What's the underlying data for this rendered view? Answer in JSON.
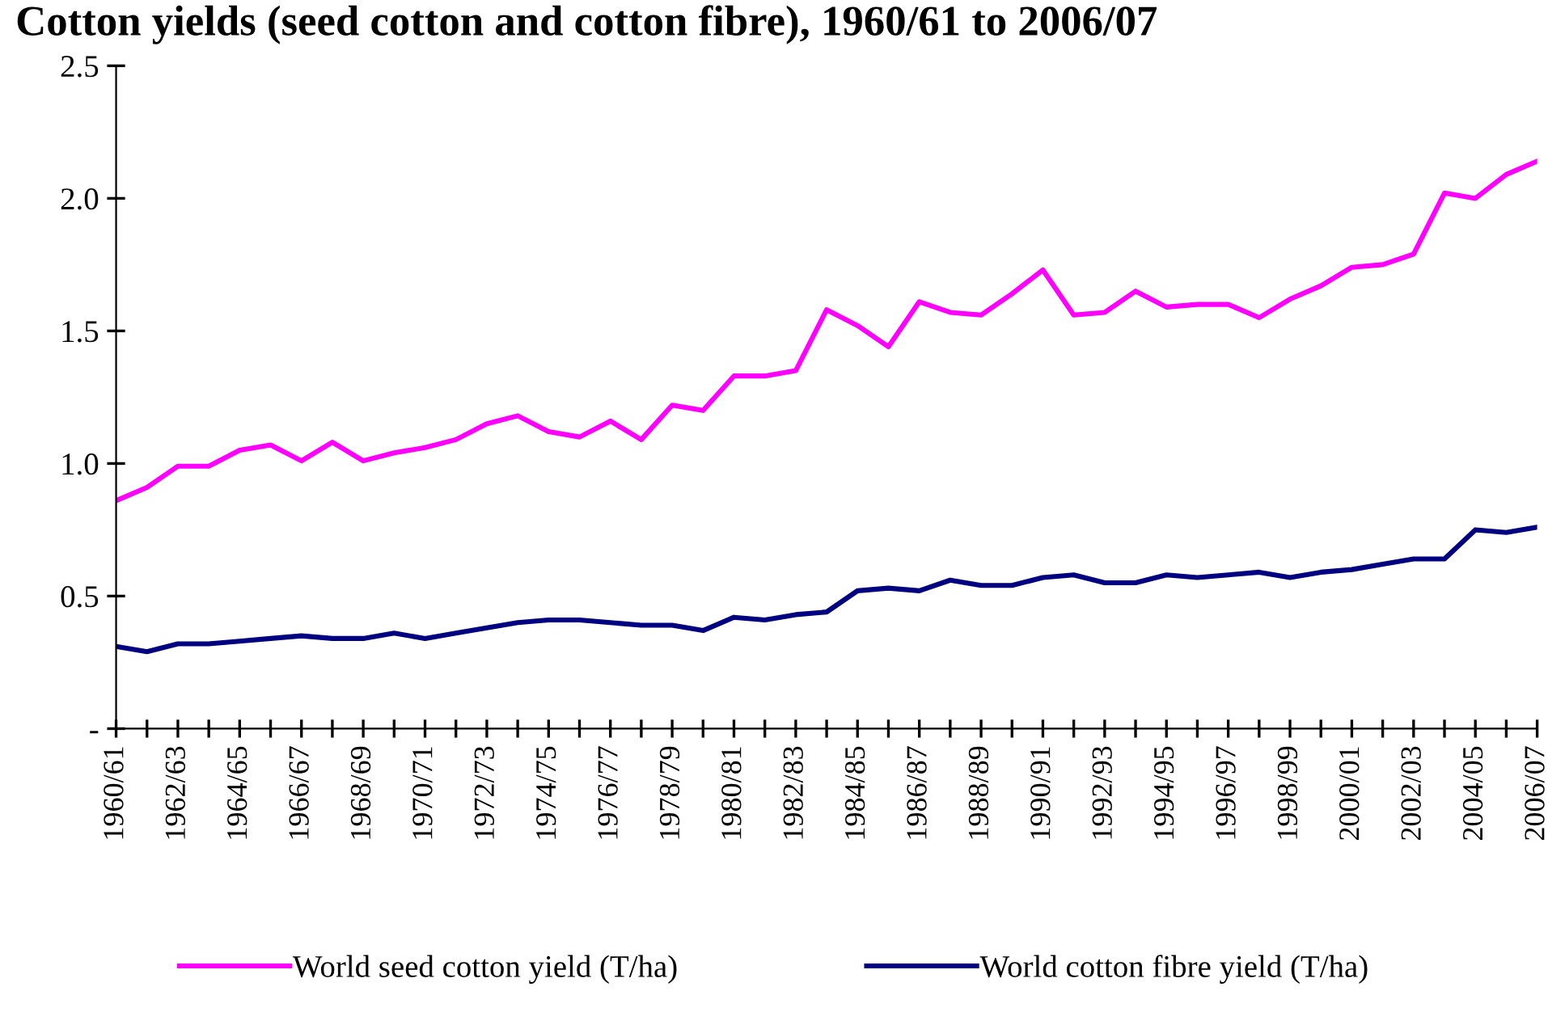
{
  "chart_data": {
    "type": "line",
    "title": "Cotton yields (seed cotton and cotton fibre), 1960/61 to 2006/07",
    "categories": [
      "1960/61",
      null,
      "1962/63",
      null,
      "1964/65",
      null,
      "1966/67",
      null,
      "1968/69",
      null,
      "1970/71",
      null,
      "1972/73",
      null,
      "1974/75",
      null,
      "1976/77",
      null,
      "1978/79",
      null,
      "1980/81",
      null,
      "1982/83",
      null,
      "1984/85",
      null,
      "1986/87",
      null,
      "1988/89",
      null,
      "1990/91",
      null,
      "1992/93",
      null,
      "1994/95",
      null,
      "1996/97",
      null,
      "1998/99",
      null,
      "2000/01",
      null,
      "2002/03",
      null,
      "2004/05",
      null,
      "2006/07"
    ],
    "series": [
      {
        "name": "World seed cotton yield (T/ha)",
        "color": "#ff00ff",
        "values": [
          0.86,
          0.91,
          0.99,
          0.99,
          1.05,
          1.07,
          1.01,
          1.08,
          1.01,
          1.04,
          1.06,
          1.09,
          1.15,
          1.18,
          1.12,
          1.1,
          1.16,
          1.09,
          1.22,
          1.2,
          1.33,
          1.33,
          1.35,
          1.58,
          1.52,
          1.44,
          1.61,
          1.57,
          1.56,
          1.64,
          1.73,
          1.56,
          1.57,
          1.65,
          1.59,
          1.6,
          1.6,
          1.55,
          1.62,
          1.67,
          1.74,
          1.75,
          1.79,
          2.02,
          2.0,
          2.09,
          2.14
        ]
      },
      {
        "name": "World cotton fibre yield (T/ha)",
        "color": "#000080",
        "values": [
          0.31,
          0.29,
          0.32,
          0.32,
          0.33,
          0.34,
          0.35,
          0.34,
          0.34,
          0.36,
          0.34,
          0.36,
          0.38,
          0.4,
          0.41,
          0.41,
          0.4,
          0.39,
          0.39,
          0.37,
          0.42,
          0.41,
          0.43,
          0.44,
          0.52,
          0.53,
          0.52,
          0.56,
          0.54,
          0.54,
          0.57,
          0.58,
          0.55,
          0.55,
          0.58,
          0.57,
          0.58,
          0.59,
          0.57,
          0.59,
          0.6,
          0.62,
          0.64,
          0.64,
          0.75,
          0.74,
          0.76
        ]
      }
    ],
    "ylim": [
      0,
      2.5
    ],
    "yticks": [
      {
        "value": 0,
        "label": "-"
      },
      0.5,
      {
        "value": 1,
        "label": "1.0"
      },
      1.5,
      {
        "value": 2,
        "label": "2.0"
      },
      2.5
    ],
    "grid": false,
    "legend": "bottom",
    "marker": "none",
    "line_style": "solid"
  }
}
